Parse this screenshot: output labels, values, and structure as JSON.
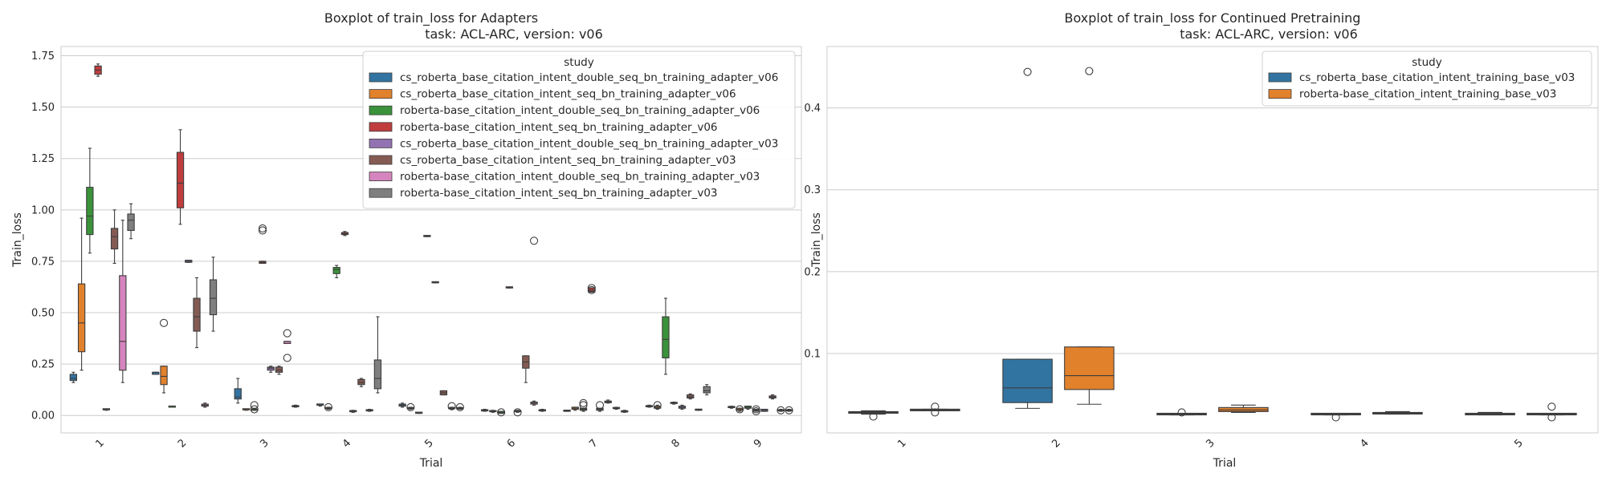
{
  "colors": {
    "palette": [
      "#3274a1",
      "#e1812c",
      "#3a923a",
      "#c03d3e",
      "#9372b2",
      "#845b53",
      "#d684bd",
      "#7f7f7f"
    ],
    "grid": "#cccccc",
    "frame": "#cccccc",
    "box_edge": "#3d3d3d"
  },
  "chart_data": [
    {
      "type": "boxplot",
      "title_line1": "Boxplot of train_loss for Adapters",
      "title_line2": "task: ACL-ARC, version: v06",
      "xlabel": "Trial",
      "ylabel": "Train_loss",
      "ylim": [
        -0.085,
        1.795
      ],
      "yticks": [
        0.0,
        0.25,
        0.5,
        0.75,
        1.0,
        1.25,
        1.5,
        1.75
      ],
      "ytick_labels": [
        "0.00",
        "0.25",
        "0.50",
        "0.75",
        "1.00",
        "1.25",
        "1.50",
        "1.75"
      ],
      "categories": [
        "1",
        "2",
        "3",
        "4",
        "5",
        "6",
        "7",
        "8",
        "9"
      ],
      "grid": true,
      "legend": {
        "title": "study",
        "placement": "top-right",
        "entries": [
          "cs_roberta_base_citation_intent_double_seq_bn_training_adapter_v06",
          "cs_roberta_base_citation_intent_seq_bn_training_adapter_v06",
          "roberta-base_citation_intent_double_seq_bn_training_adapter_v06",
          "roberta-base_citation_intent_seq_bn_training_adapter_v06",
          "cs_roberta_base_citation_intent_double_seq_bn_training_adapter_v03",
          "cs_roberta_base_citation_intent_seq_bn_training_adapter_v03",
          "roberta-base_citation_intent_double_seq_bn_training_adapter_v03",
          "roberta-base_citation_intent_seq_bn_training_adapter_v03"
        ]
      },
      "series": [
        {
          "name": "cs_roberta_base_citation_intent_double_seq_bn_training_adapter_v06",
          "boxes": [
            [
              0.16,
              0.17,
              0.18,
              0.2,
              0.21,
              []
            ],
            [
              0.2,
              0.2,
              0.21,
              0.21,
              0.21,
              []
            ],
            [
              0.06,
              0.08,
              0.09,
              0.13,
              0.18,
              []
            ],
            [
              0.045,
              0.05,
              0.05,
              0.053,
              0.055,
              []
            ],
            [
              0.04,
              0.045,
              0.05,
              0.055,
              0.06,
              []
            ],
            [
              0.02,
              0.022,
              0.025,
              0.028,
              0.03,
              []
            ],
            [
              0.02,
              0.02,
              0.022,
              0.025,
              0.025,
              []
            ],
            [
              0.04,
              0.042,
              0.045,
              0.048,
              0.05,
              []
            ],
            [
              0.035,
              0.038,
              0.04,
              0.042,
              0.045,
              []
            ]
          ]
        },
        {
          "name": "cs_roberta_base_citation_intent_seq_bn_training_adapter_v06",
          "boxes": [
            [
              0.22,
              0.31,
              0.45,
              0.64,
              0.96,
              []
            ],
            [
              0.11,
              0.15,
              0.19,
              0.24,
              0.24,
              [
                0.45
              ]
            ],
            [
              0.025,
              0.027,
              0.028,
              0.03,
              0.032,
              []
            ],
            [
              0.03,
              0.033,
              0.035,
              0.038,
              0.04,
              [
                0.04
              ]
            ],
            [
              0.03,
              0.033,
              0.035,
              0.038,
              0.04,
              [
                0.04
              ]
            ],
            [
              0.015,
              0.018,
              0.02,
              0.022,
              0.025,
              []
            ],
            [
              0.025,
              0.03,
              0.035,
              0.04,
              0.04,
              []
            ],
            [
              0.03,
              0.035,
              0.04,
              0.045,
              0.05,
              [
                0.05
              ]
            ],
            [
              0.02,
              0.025,
              0.03,
              0.035,
              0.035,
              [
                0.03
              ]
            ]
          ]
        },
        {
          "name": "roberta-base_citation_intent_double_seq_bn_training_adapter_v06",
          "boxes": [
            [
              0.79,
              0.88,
              0.97,
              1.11,
              1.3,
              []
            ],
            [
              0.04,
              0.04,
              0.04,
              0.045,
              0.045,
              []
            ],
            [
              0.025,
              0.025,
              0.03,
              0.03,
              0.035,
              [
                0.05,
                0.03
              ]
            ],
            [
              0.67,
              0.69,
              0.71,
              0.72,
              0.73,
              []
            ],
            [
              0.01,
              0.01,
              0.012,
              0.015,
              0.015,
              []
            ],
            [
              0.01,
              0.01,
              0.015,
              0.02,
              0.02,
              [
                0.015
              ]
            ],
            [
              0.02,
              0.025,
              0.03,
              0.035,
              0.035,
              [
                0.06,
                0.05
              ]
            ],
            [
              0.2,
              0.28,
              0.37,
              0.48,
              0.57,
              []
            ],
            [
              0.03,
              0.035,
              0.04,
              0.045,
              0.045,
              []
            ]
          ]
        },
        {
          "name": "roberta-base_citation_intent_seq_bn_training_adapter_v06",
          "boxes": [
            [
              1.65,
              1.66,
              1.68,
              1.7,
              1.71,
              []
            ],
            [
              0.93,
              1.01,
              1.13,
              1.28,
              1.39,
              []
            ],
            [
              0.74,
              0.74,
              0.745,
              0.75,
              0.75,
              [
                0.9,
                0.91
              ]
            ],
            [
              0.875,
              0.88,
              0.885,
              0.89,
              0.895,
              []
            ],
            [
              0.87,
              0.87,
              0.872,
              0.875,
              0.875,
              []
            ],
            [
              0.62,
              0.62,
              0.622,
              0.625,
              0.625,
              []
            ],
            [
              0.6,
              0.6,
              0.61,
              0.62,
              0.62,
              [
                0.61,
                0.62
              ]
            ],
            [
              0.055,
              0.058,
              0.06,
              0.062,
              0.065,
              []
            ],
            [
              0.02,
              0.023,
              0.025,
              0.028,
              0.03,
              [
                0.03,
                0.02
              ]
            ]
          ]
        },
        {
          "name": "cs_roberta_base_citation_intent_double_seq_bn_training_adapter_v03",
          "boxes": [
            [
              0.025,
              0.027,
              0.028,
              0.03,
              0.03,
              []
            ],
            [
              0.745,
              0.745,
              0.75,
              0.755,
              0.755,
              []
            ],
            [
              0.21,
              0.22,
              0.23,
              0.235,
              0.24,
              []
            ],
            [
              0.015,
              0.018,
              0.02,
              0.022,
              0.025,
              []
            ],
            [
              0.645,
              0.645,
              0.648,
              0.65,
              0.65,
              []
            ],
            [
              0.015,
              0.018,
              0.02,
              0.022,
              0.025,
              [
                0.015
              ]
            ],
            [
              0.02,
              0.025,
              0.03,
              0.035,
              0.035,
              [
                0.05
              ]
            ],
            [
              0.03,
              0.035,
              0.04,
              0.045,
              0.05,
              []
            ],
            [
              0.02,
              0.02,
              0.025,
              0.03,
              0.03,
              []
            ]
          ]
        },
        {
          "name": "cs_roberta_base_citation_intent_seq_bn_training_adapter_v03",
          "boxes": [
            [
              0.74,
              0.81,
              0.87,
              0.91,
              1.0,
              []
            ],
            [
              0.33,
              0.41,
              0.48,
              0.57,
              0.67,
              []
            ],
            [
              0.2,
              0.21,
              0.22,
              0.235,
              0.24,
              []
            ],
            [
              0.14,
              0.15,
              0.16,
              0.175,
              0.18,
              []
            ],
            [
              0.1,
              0.1,
              0.11,
              0.12,
              0.12,
              []
            ],
            [
              0.16,
              0.23,
              0.26,
              0.29,
              0.29,
              []
            ],
            [
              0.06,
              0.062,
              0.065,
              0.07,
              0.075,
              []
            ],
            [
              0.08,
              0.085,
              0.09,
              0.1,
              0.105,
              []
            ],
            [
              0.08,
              0.085,
              0.09,
              0.095,
              0.1,
              []
            ]
          ]
        },
        {
          "name": "roberta-base_citation_intent_double_seq_bn_training_adapter_v03",
          "boxes": [
            [
              0.16,
              0.22,
              0.36,
              0.68,
              0.95,
              []
            ],
            [
              0.04,
              0.045,
              0.05,
              0.055,
              0.06,
              []
            ],
            [
              0.35,
              0.35,
              0.36,
              0.36,
              0.36,
              [
                0.28,
                0.4
              ]
            ],
            [
              0.02,
              0.022,
              0.025,
              0.028,
              0.03,
              []
            ],
            [
              0.03,
              0.033,
              0.035,
              0.038,
              0.04,
              [
                0.045
              ]
            ],
            [
              0.05,
              0.055,
              0.06,
              0.065,
              0.07,
              [
                0.85
              ]
            ],
            [
              0.03,
              0.033,
              0.035,
              0.038,
              0.04,
              []
            ],
            [
              0.025,
              0.025,
              0.028,
              0.03,
              0.03,
              []
            ],
            [
              0.02,
              0.022,
              0.025,
              0.028,
              0.03,
              [
                0.025
              ]
            ]
          ]
        },
        {
          "name": "roberta-base_citation_intent_seq_bn_training_adapter_v03",
          "boxes": [
            [
              0.86,
              0.9,
              0.95,
              0.98,
              1.03,
              []
            ],
            [
              0.41,
              0.49,
              0.57,
              0.66,
              0.77,
              []
            ],
            [
              0.04,
              0.042,
              0.045,
              0.048,
              0.05,
              []
            ],
            [
              0.11,
              0.13,
              0.18,
              0.27,
              0.48,
              []
            ],
            [
              0.03,
              0.032,
              0.035,
              0.038,
              0.04,
              [
                0.04
              ]
            ],
            [
              0.02,
              0.022,
              0.025,
              0.028,
              0.03,
              []
            ],
            [
              0.015,
              0.017,
              0.02,
              0.022,
              0.025,
              []
            ],
            [
              0.1,
              0.11,
              0.12,
              0.14,
              0.15,
              []
            ],
            [
              0.02,
              0.022,
              0.025,
              0.028,
              0.03,
              [
                0.025
              ]
            ]
          ]
        }
      ]
    },
    {
      "type": "boxplot",
      "title_line1": "Boxplot of train_loss for Continued Pretraining",
      "title_line2": "task: ACL-ARC, version: v06",
      "xlabel": "Trial",
      "ylabel": "Train_loss",
      "ylim": [
        0.003,
        0.475
      ],
      "yticks": [
        0.1,
        0.2,
        0.3,
        0.4
      ],
      "ytick_labels": [
        "0.1",
        "0.2",
        "0.3",
        "0.4"
      ],
      "categories": [
        "1",
        "2",
        "3",
        "4",
        "5"
      ],
      "grid": true,
      "legend": {
        "title": "study",
        "placement": "top-right",
        "entries": [
          "cs_roberta_base_citation_intent_training_base_v03",
          "roberta-base_citation_intent_training_base_v03"
        ]
      },
      "series": [
        {
          "name": "cs_roberta_base_citation_intent_training_base_v03",
          "boxes": [
            [
              0.026,
              0.027,
              0.028,
              0.029,
              0.03,
              [
                0.023
              ]
            ],
            [
              0.033,
              0.04,
              0.058,
              0.093,
              0.093,
              [
                0.444
              ]
            ],
            [
              0.025,
              0.025,
              0.026,
              0.027,
              0.027,
              [
                0.028
              ]
            ],
            [
              0.025,
              0.025,
              0.026,
              0.027,
              0.027,
              [
                0.022
              ]
            ],
            [
              0.025,
              0.025,
              0.026,
              0.027,
              0.028,
              []
            ]
          ]
        },
        {
          "name": "roberta-base_citation_intent_training_base_v03",
          "boxes": [
            [
              0.03,
              0.03,
              0.031,
              0.032,
              0.032,
              [
                0.035,
                0.028
              ]
            ],
            [
              0.038,
              0.056,
              0.073,
              0.108,
              0.108,
              [
                0.445
              ]
            ],
            [
              0.028,
              0.029,
              0.031,
              0.034,
              0.037,
              []
            ],
            [
              0.026,
              0.026,
              0.027,
              0.028,
              0.029,
              []
            ],
            [
              0.025,
              0.025,
              0.026,
              0.027,
              0.027,
              [
                0.035,
                0.022
              ]
            ]
          ]
        }
      ]
    }
  ]
}
